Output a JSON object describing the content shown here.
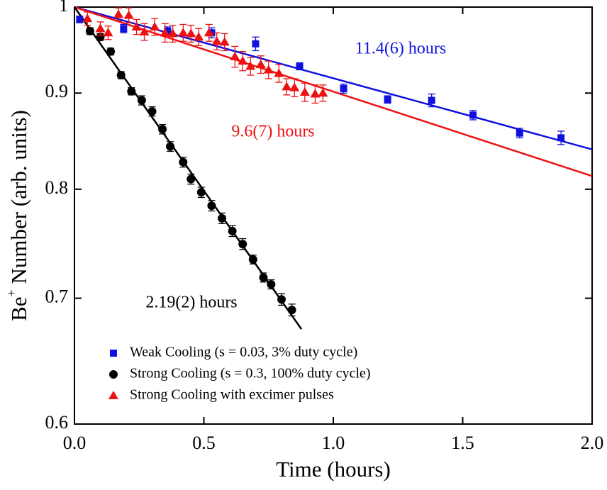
{
  "chart_data": {
    "type": "scatter",
    "x_label": "Time (hours)",
    "y_label": "Be",
    "y_label_sup": "+",
    "y_label_rest": " Number (arb. units)",
    "log_y": true,
    "xlim": [
      0,
      2
    ],
    "ylim": [
      0.6,
      1
    ],
    "xticks": [
      {
        "value": 0,
        "label": "0.0"
      },
      {
        "value": 0.5,
        "label": "0.5"
      },
      {
        "value": 1,
        "label": "1.0"
      },
      {
        "value": 1.5,
        "label": "1.5"
      },
      {
        "value": 2,
        "label": "2.0"
      }
    ],
    "yticks": [
      0.6,
      0.7,
      0.8,
      0.9,
      1
    ],
    "series": [
      {
        "name": "Weak Cooling (s = 0.03, 3% duty cycle)",
        "color": "#1010e0",
        "marker": "square",
        "x": [
          0.02,
          0.19,
          0.36,
          0.53,
          0.7,
          0.87,
          1.04,
          1.21,
          1.38,
          1.54,
          1.72,
          1.88
        ],
        "values": [
          0.985,
          0.974,
          0.971,
          0.969,
          0.956,
          0.93,
          0.905,
          0.893,
          0.892,
          0.876,
          0.857,
          0.852
        ],
        "errors": [
          0.004,
          0.005,
          0.005,
          0.006,
          0.008,
          0.004,
          0.005,
          0.004,
          0.007,
          0.005,
          0.005,
          0.007
        ]
      },
      {
        "name": "Strong Cooling (s = 0.3, 100% duty cycle)",
        "color": "#000000",
        "marker": "circle",
        "x": [
          0.06,
          0.1,
          0.14,
          0.18,
          0.22,
          0.26,
          0.3,
          0.34,
          0.37,
          0.42,
          0.45,
          0.49,
          0.53,
          0.57,
          0.61,
          0.65,
          0.69,
          0.73,
          0.76,
          0.8,
          0.84
        ],
        "values": [
          0.971,
          0.964,
          0.947,
          0.92,
          0.902,
          0.892,
          0.88,
          0.861,
          0.843,
          0.827,
          0.81,
          0.797,
          0.784,
          0.772,
          0.76,
          0.748,
          0.734,
          0.718,
          0.712,
          0.699,
          0.69
        ],
        "errors": [
          0.004,
          0.004,
          0.004,
          0.004,
          0.004,
          0.005,
          0.005,
          0.005,
          0.005,
          0.005,
          0.005,
          0.005,
          0.005,
          0.005,
          0.005,
          0.005,
          0.004,
          0.004,
          0.004,
          0.005,
          0.005
        ]
      },
      {
        "name": "Strong Cooling with excimer pulses",
        "color": "#ee1111",
        "marker": "triangle",
        "x": [
          0.05,
          0.1,
          0.13,
          0.17,
          0.21,
          0.24,
          0.27,
          0.31,
          0.35,
          0.38,
          0.42,
          0.45,
          0.48,
          0.52,
          0.55,
          0.58,
          0.62,
          0.65,
          0.68,
          0.72,
          0.75,
          0.79,
          0.82,
          0.85,
          0.89,
          0.93,
          0.96
        ],
        "values": [
          0.986,
          0.974,
          0.969,
          0.991,
          0.99,
          0.976,
          0.97,
          0.976,
          0.969,
          0.968,
          0.969,
          0.968,
          0.964,
          0.969,
          0.959,
          0.958,
          0.941,
          0.936,
          0.93,
          0.932,
          0.926,
          0.922,
          0.907,
          0.906,
          0.901,
          0.899,
          0.9
        ],
        "errors": [
          0.008,
          0.008,
          0.008,
          0.008,
          0.009,
          0.009,
          0.01,
          0.01,
          0.011,
          0.01,
          0.01,
          0.01,
          0.01,
          0.01,
          0.01,
          0.01,
          0.012,
          0.011,
          0.01,
          0.01,
          0.01,
          0.01,
          0.009,
          0.01,
          0.01,
          0.01,
          0.009
        ]
      }
    ],
    "fits": [
      {
        "color": "#1010e0",
        "x": [
          0,
          2
        ],
        "values": [
          1.0,
          0.84
        ]
      },
      {
        "color": "#ee1111",
        "x": [
          0,
          2
        ],
        "values": [
          1.0,
          0.813
        ]
      },
      {
        "color": "#000000",
        "x": [
          0,
          0.877
        ],
        "values": [
          1.0,
          0.674
        ]
      }
    ],
    "annotations": [
      {
        "text": "11.4(6) hours",
        "color": "#1010e0"
      },
      {
        "text": "9.6(7) hours",
        "color": "#ee1111"
      },
      {
        "text": "2.19(2) hours",
        "color": "#000000"
      }
    ]
  }
}
